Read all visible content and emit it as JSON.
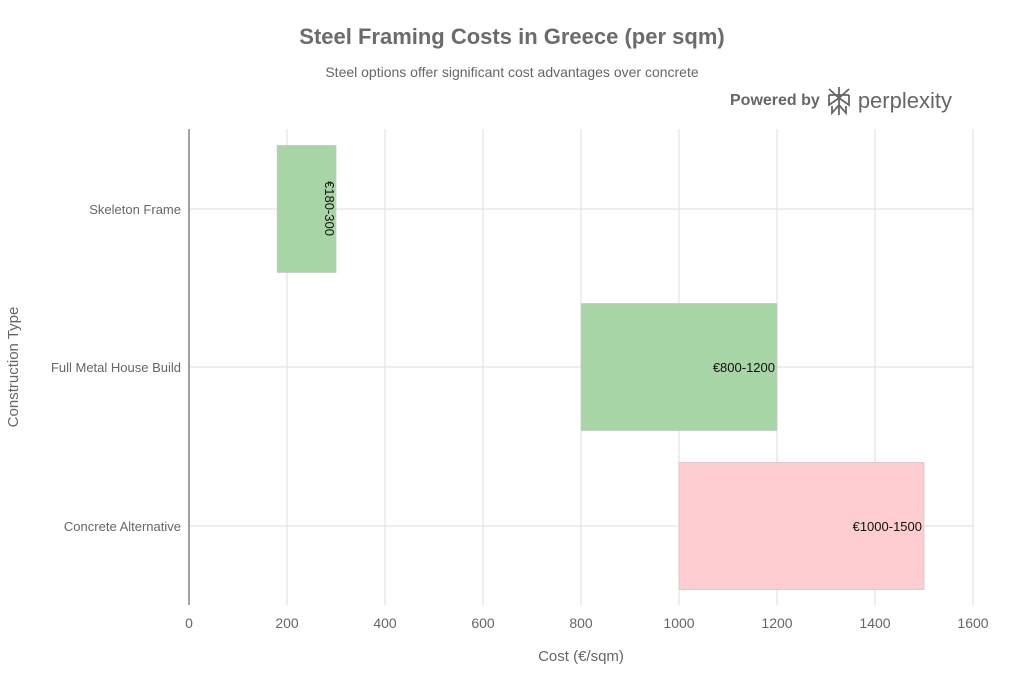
{
  "chart_data": {
    "type": "bar",
    "orientation": "horizontal",
    "floating": true,
    "title": "Steel Framing Costs in Greece (per sqm)",
    "subtitle": "Steel options offer significant cost advantages over concrete",
    "xlabel": "Cost (€/sqm)",
    "ylabel": "Construction Type",
    "xlim": [
      0,
      1600
    ],
    "xticks": [
      0,
      200,
      400,
      600,
      800,
      1000,
      1200,
      1400,
      1600
    ],
    "grid": true,
    "categories": [
      "Skeleton Frame",
      "Full Metal House Build",
      "Concrete Alternative"
    ],
    "ranges": [
      [
        180,
        300
      ],
      [
        800,
        1200
      ],
      [
        1000,
        1500
      ]
    ],
    "labels": [
      "€180-300",
      "€800-1200",
      "€1000-1500"
    ],
    "colors": [
      "#a7d5a5",
      "#a7d5a5",
      "#fecdd2"
    ]
  },
  "branding": {
    "powered_by": "Powered by",
    "name": "perplexity"
  }
}
